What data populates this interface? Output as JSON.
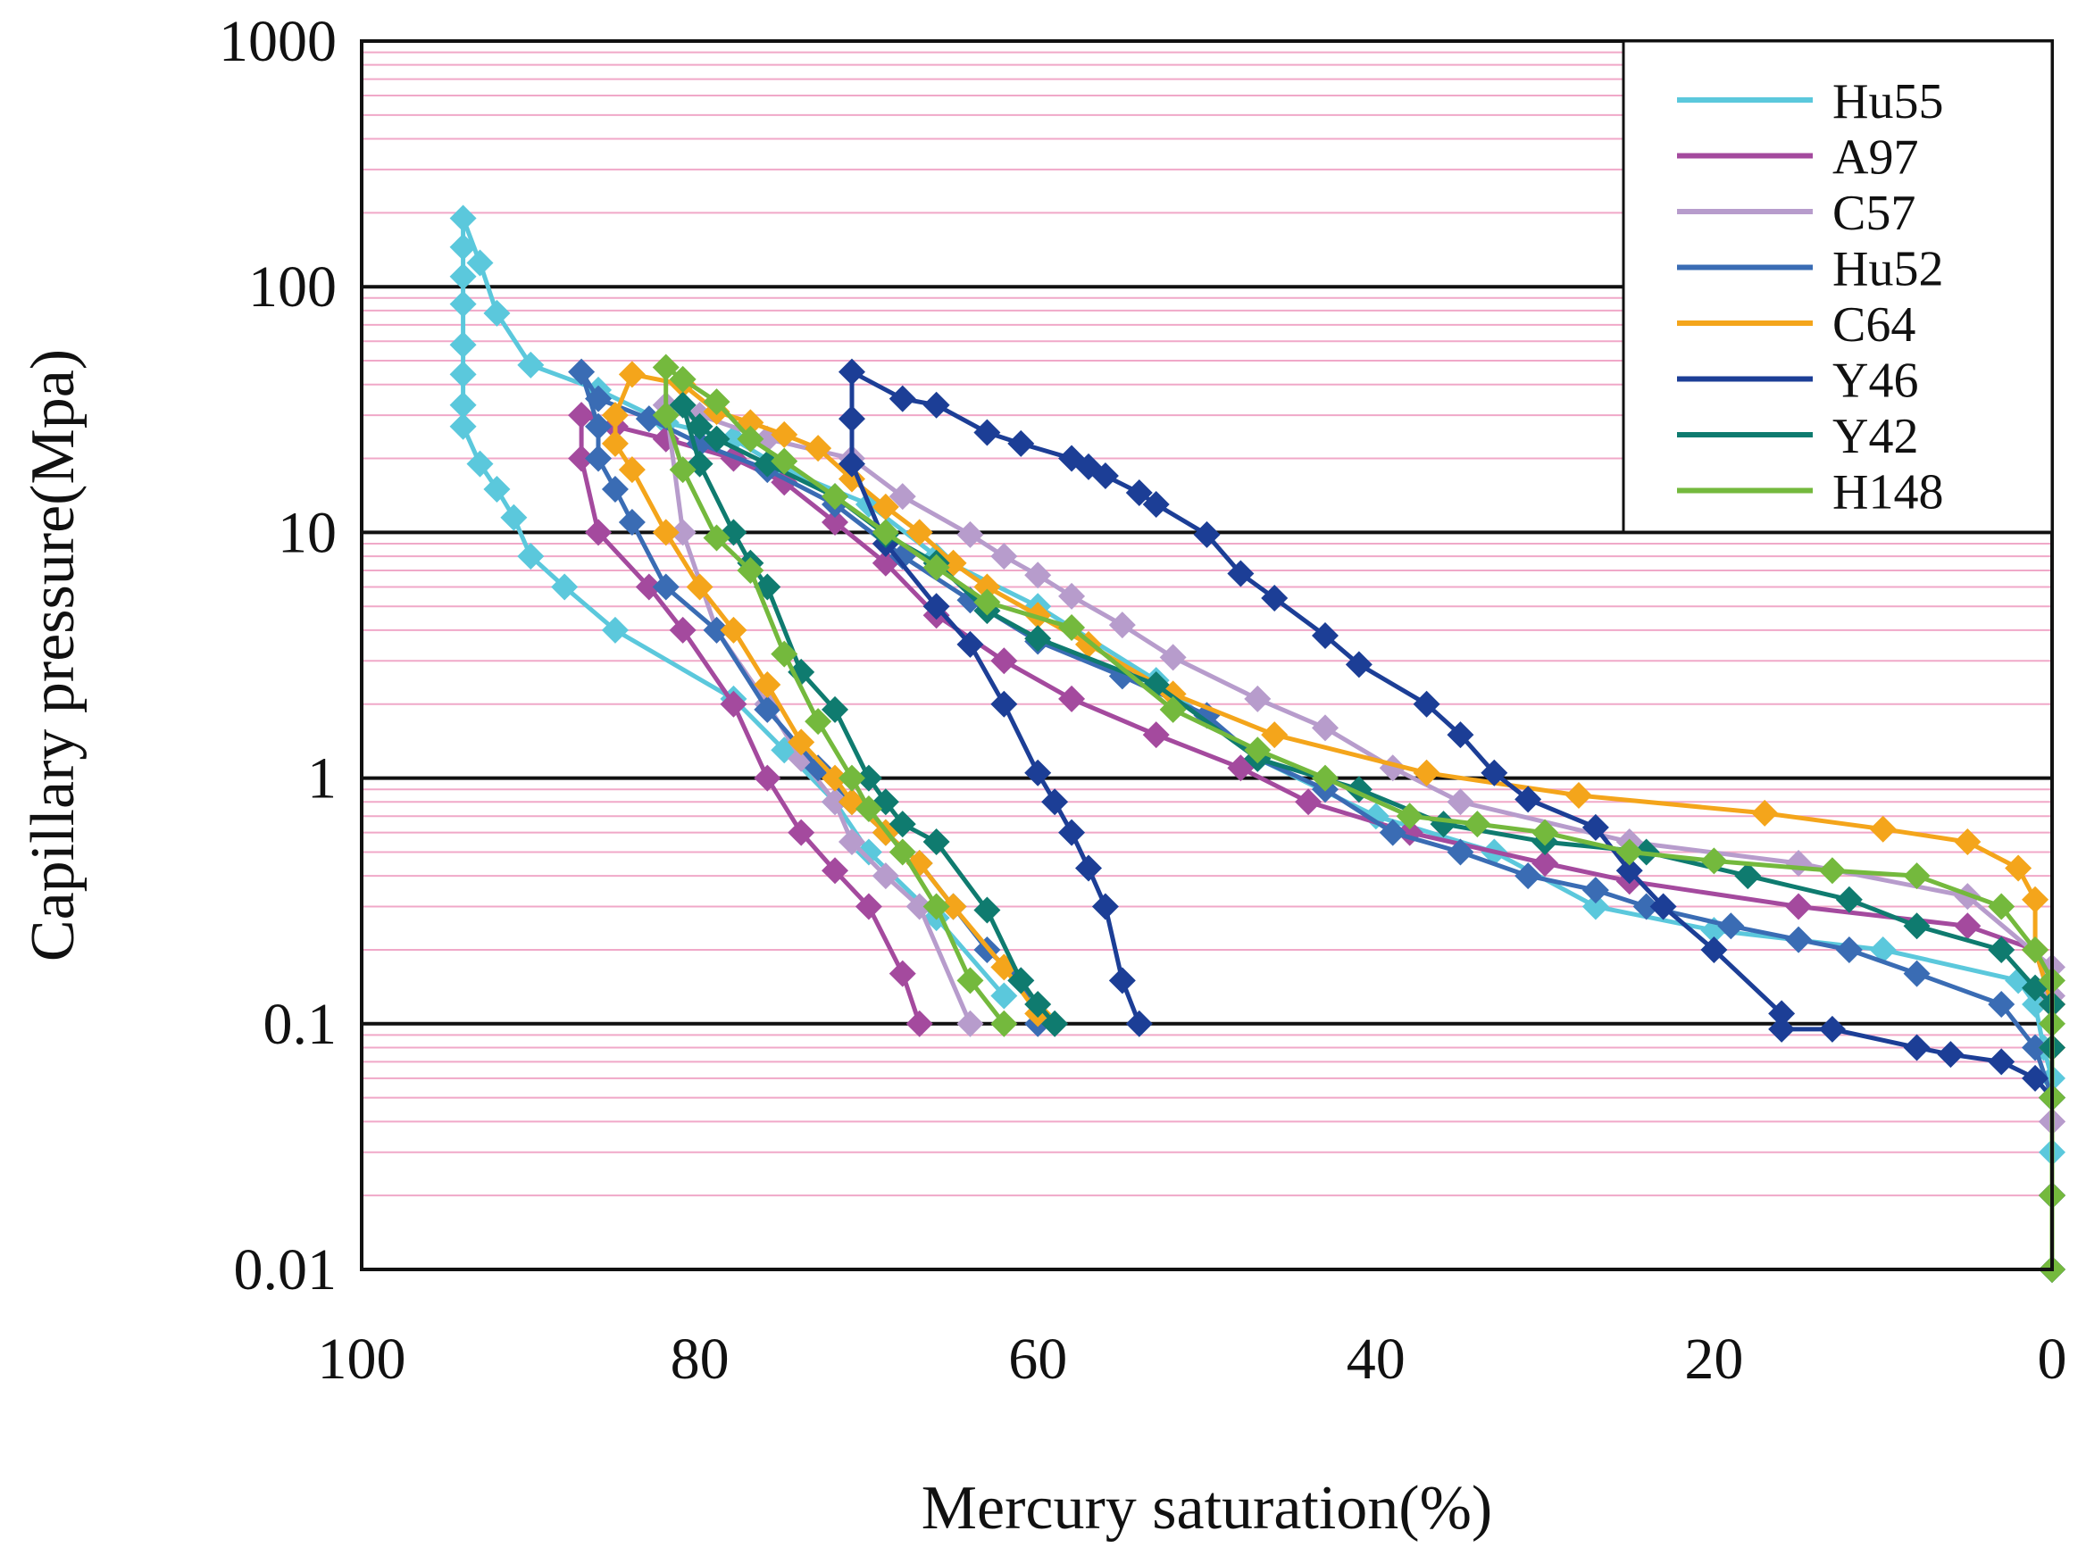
{
  "chart_data": {
    "type": "line",
    "title": "",
    "xlabel": "Mercury saturation(%)",
    "ylabel": "Capillary pressure(Mpa)",
    "x_scale": "linear",
    "x_reversed": true,
    "xlim": [
      0,
      100
    ],
    "y_scale": "log",
    "ylim": [
      0.01,
      1000
    ],
    "x_ticks": [
      "100",
      "80",
      "60",
      "40",
      "20",
      "0"
    ],
    "y_ticks": [
      "0.01",
      "0.1",
      "1",
      "10",
      "100",
      "1000"
    ],
    "grid": "major black, minor pink",
    "legend_position": "top-right",
    "marker": "diamond",
    "series": [
      {
        "name": "Hu55",
        "color": "#5bc8dc",
        "points": [
          [
            0,
            0.01
          ],
          [
            0,
            0.03
          ],
          [
            0,
            0.06
          ],
          [
            0.5,
            0.08
          ],
          [
            1,
            0.12
          ],
          [
            2,
            0.15
          ],
          [
            10,
            0.2
          ],
          [
            20,
            0.24
          ],
          [
            27,
            0.3
          ],
          [
            33,
            0.5
          ],
          [
            40,
            0.7
          ],
          [
            47,
            1.2
          ],
          [
            53,
            2.5
          ],
          [
            60,
            5
          ],
          [
            66,
            8
          ],
          [
            70,
            13
          ],
          [
            75,
            18
          ],
          [
            78,
            24
          ],
          [
            82,
            28
          ],
          [
            86,
            38
          ],
          [
            90,
            48
          ],
          [
            92,
            78
          ],
          [
            93,
            125
          ],
          [
            94,
            190
          ],
          [
            94,
            145
          ],
          [
            94,
            110
          ],
          [
            94,
            85
          ],
          [
            94,
            58
          ],
          [
            94,
            44
          ],
          [
            94,
            33
          ],
          [
            94,
            27
          ],
          [
            93,
            19
          ],
          [
            92,
            15
          ],
          [
            91,
            11.5
          ],
          [
            90,
            8
          ],
          [
            88,
            6
          ],
          [
            85,
            4
          ],
          [
            78,
            2.1
          ],
          [
            75,
            1.3
          ],
          [
            72,
            0.8
          ],
          [
            70,
            0.5
          ],
          [
            66,
            0.27
          ],
          [
            62,
            0.13
          ]
        ]
      },
      {
        "name": "A97",
        "color": "#a44a9e",
        "points": [
          [
            0,
            0.01
          ],
          [
            0,
            0.02
          ],
          [
            0,
            0.04
          ],
          [
            0,
            0.08
          ],
          [
            0,
            0.12
          ],
          [
            1,
            0.2
          ],
          [
            5,
            0.25
          ],
          [
            15,
            0.3
          ],
          [
            25,
            0.38
          ],
          [
            30,
            0.45
          ],
          [
            38,
            0.6
          ],
          [
            44,
            0.8
          ],
          [
            48,
            1.1
          ],
          [
            53,
            1.5
          ],
          [
            58,
            2.1
          ],
          [
            62,
            3
          ],
          [
            66,
            4.6
          ],
          [
            69,
            7.5
          ],
          [
            72,
            11
          ],
          [
            75,
            16
          ],
          [
            78,
            20
          ],
          [
            82,
            24
          ],
          [
            85,
            27
          ],
          [
            87,
            30
          ],
          [
            87,
            20
          ],
          [
            86,
            10
          ],
          [
            83,
            6
          ],
          [
            81,
            4
          ],
          [
            78,
            2
          ],
          [
            76,
            1
          ],
          [
            74,
            0.6
          ],
          [
            72,
            0.42
          ],
          [
            70,
            0.3
          ],
          [
            68,
            0.16
          ],
          [
            67,
            0.1
          ]
        ]
      },
      {
        "name": "C57",
        "color": "#b79ccc",
        "points": [
          [
            0,
            0.01
          ],
          [
            0,
            0.02
          ],
          [
            0,
            0.04
          ],
          [
            0,
            0.08
          ],
          [
            0,
            0.13
          ],
          [
            0,
            0.17
          ],
          [
            5,
            0.33
          ],
          [
            15,
            0.45
          ],
          [
            25,
            0.55
          ],
          [
            35,
            0.8
          ],
          [
            39,
            1.1
          ],
          [
            43,
            1.6
          ],
          [
            47,
            2.1
          ],
          [
            52,
            3.1
          ],
          [
            55,
            4.2
          ],
          [
            58,
            5.5
          ],
          [
            60,
            6.7
          ],
          [
            62,
            8
          ],
          [
            64,
            9.8
          ],
          [
            68,
            14
          ],
          [
            71,
            20
          ],
          [
            76,
            24
          ],
          [
            80,
            30
          ],
          [
            82,
            33
          ],
          [
            81,
            10
          ],
          [
            79,
            4
          ],
          [
            76,
            2
          ],
          [
            74,
            1.2
          ],
          [
            72,
            0.8
          ],
          [
            71,
            0.55
          ],
          [
            69,
            0.4
          ],
          [
            67,
            0.3
          ],
          [
            64,
            0.1
          ]
        ]
      },
      {
        "name": "Hu52",
        "color": "#3a6cb4",
        "points": [
          [
            0,
            0.01
          ],
          [
            0,
            0.02
          ],
          [
            0,
            0.05
          ],
          [
            1,
            0.08
          ],
          [
            3,
            0.12
          ],
          [
            8,
            0.16
          ],
          [
            12,
            0.2
          ],
          [
            15,
            0.22
          ],
          [
            19,
            0.25
          ],
          [
            24,
            0.3
          ],
          [
            27,
            0.35
          ],
          [
            31,
            0.4
          ],
          [
            35,
            0.5
          ],
          [
            39,
            0.6
          ],
          [
            43,
            0.9
          ],
          [
            47,
            1.2
          ],
          [
            50,
            1.8
          ],
          [
            55,
            2.6
          ],
          [
            60,
            3.6
          ],
          [
            64,
            5.3
          ],
          [
            68,
            8
          ],
          [
            72,
            13
          ],
          [
            76,
            18
          ],
          [
            80,
            23
          ],
          [
            83,
            29
          ],
          [
            86,
            35
          ],
          [
            87,
            45
          ],
          [
            86,
            27
          ],
          [
            86,
            20
          ],
          [
            85,
            15
          ],
          [
            84,
            11
          ],
          [
            82,
            6
          ],
          [
            79,
            4
          ],
          [
            76,
            1.9
          ],
          [
            73,
            1.1
          ],
          [
            71,
            0.8
          ],
          [
            69,
            0.6
          ],
          [
            67,
            0.45
          ],
          [
            65,
            0.3
          ],
          [
            63,
            0.2
          ],
          [
            61,
            0.15
          ],
          [
            60,
            0.1
          ]
        ]
      },
      {
        "name": "C64",
        "color": "#f4a51b",
        "points": [
          [
            0,
            0.01
          ],
          [
            0,
            0.02
          ],
          [
            0,
            0.05
          ],
          [
            0,
            0.08
          ],
          [
            0,
            0.12
          ],
          [
            1,
            0.2
          ],
          [
            1,
            0.32
          ],
          [
            2,
            0.43
          ],
          [
            5,
            0.55
          ],
          [
            10,
            0.62
          ],
          [
            17,
            0.72
          ],
          [
            28,
            0.85
          ],
          [
            37,
            1.05
          ],
          [
            46,
            1.5
          ],
          [
            52,
            2.2
          ],
          [
            57,
            3.5
          ],
          [
            60,
            4.6
          ],
          [
            63,
            6
          ],
          [
            65,
            7.5
          ],
          [
            67,
            10
          ],
          [
            69,
            12.7
          ],
          [
            71,
            16.5
          ],
          [
            73,
            22
          ],
          [
            75,
            25
          ],
          [
            77,
            28
          ],
          [
            79,
            31
          ],
          [
            81,
            40
          ],
          [
            84,
            44
          ],
          [
            85,
            30
          ],
          [
            85,
            23
          ],
          [
            84,
            18
          ],
          [
            82,
            10
          ],
          [
            80,
            6
          ],
          [
            78,
            4
          ],
          [
            76,
            2.4
          ],
          [
            74,
            1.4
          ],
          [
            72,
            1
          ],
          [
            71,
            0.8
          ],
          [
            69,
            0.6
          ],
          [
            67,
            0.45
          ],
          [
            65,
            0.3
          ],
          [
            62,
            0.17
          ],
          [
            60,
            0.11
          ]
        ]
      },
      {
        "name": "Y46",
        "color": "#1c3e96",
        "points": [
          [
            0,
            0.01
          ],
          [
            0,
            0.02
          ],
          [
            0,
            0.05
          ],
          [
            1,
            0.06
          ],
          [
            3,
            0.07
          ],
          [
            6,
            0.075
          ],
          [
            8,
            0.08
          ],
          [
            13,
            0.095
          ],
          [
            16,
            0.095
          ],
          [
            16,
            0.11
          ],
          [
            20,
            0.2
          ],
          [
            23,
            0.3
          ],
          [
            25,
            0.42
          ],
          [
            27,
            0.63
          ],
          [
            31,
            0.82
          ],
          [
            33,
            1.05
          ],
          [
            35,
            1.5
          ],
          [
            37,
            2
          ],
          [
            41,
            2.9
          ],
          [
            43,
            3.8
          ],
          [
            46,
            5.4
          ],
          [
            48,
            6.8
          ],
          [
            50,
            9.8
          ],
          [
            53,
            13
          ],
          [
            54,
            14.5
          ],
          [
            56,
            17
          ],
          [
            57,
            18.5
          ],
          [
            58,
            20
          ],
          [
            61,
            23
          ],
          [
            63,
            25.5
          ],
          [
            66,
            33
          ],
          [
            68,
            35
          ],
          [
            71,
            45
          ],
          [
            71,
            29
          ],
          [
            71,
            19
          ],
          [
            69,
            9
          ],
          [
            66,
            5
          ],
          [
            64,
            3.5
          ],
          [
            62,
            2
          ],
          [
            60,
            1.05
          ],
          [
            59,
            0.8
          ],
          [
            58,
            0.6
          ],
          [
            57,
            0.43
          ],
          [
            56,
            0.3
          ],
          [
            55,
            0.15
          ],
          [
            54,
            0.1
          ]
        ]
      },
      {
        "name": "Y42",
        "color": "#0f7b6f",
        "points": [
          [
            0,
            0.01
          ],
          [
            0,
            0.02
          ],
          [
            0,
            0.05
          ],
          [
            0,
            0.08
          ],
          [
            0,
            0.12
          ],
          [
            1,
            0.14
          ],
          [
            3,
            0.2
          ],
          [
            8,
            0.25
          ],
          [
            12,
            0.32
          ],
          [
            18,
            0.4
          ],
          [
            24,
            0.5
          ],
          [
            30,
            0.55
          ],
          [
            36,
            0.65
          ],
          [
            41,
            0.9
          ],
          [
            47,
            1.2
          ],
          [
            53,
            2.4
          ],
          [
            60,
            3.7
          ],
          [
            63,
            4.8
          ],
          [
            66,
            7.5
          ],
          [
            69,
            9.8
          ],
          [
            72,
            14
          ],
          [
            76,
            19
          ],
          [
            79,
            24
          ],
          [
            80,
            27
          ],
          [
            81,
            33
          ],
          [
            80,
            19
          ],
          [
            78,
            10
          ],
          [
            77,
            7.5
          ],
          [
            76,
            6
          ],
          [
            74,
            2.7
          ],
          [
            72,
            1.9
          ],
          [
            70,
            1
          ],
          [
            69,
            0.8
          ],
          [
            68,
            0.65
          ],
          [
            66,
            0.55
          ],
          [
            63,
            0.29
          ],
          [
            61,
            0.15
          ],
          [
            60,
            0.12
          ],
          [
            59,
            0.1
          ]
        ]
      },
      {
        "name": "H148",
        "color": "#74b93d",
        "points": [
          [
            0,
            0.01
          ],
          [
            0,
            0.02
          ],
          [
            0,
            0.05
          ],
          [
            0,
            0.1
          ],
          [
            0,
            0.15
          ],
          [
            1,
            0.2
          ],
          [
            3,
            0.3
          ],
          [
            8,
            0.4
          ],
          [
            13,
            0.42
          ],
          [
            20,
            0.46
          ],
          [
            25,
            0.5
          ],
          [
            30,
            0.6
          ],
          [
            34,
            0.65
          ],
          [
            38,
            0.7
          ],
          [
            43,
            1
          ],
          [
            47,
            1.3
          ],
          [
            52,
            1.9
          ],
          [
            58,
            4.1
          ],
          [
            63,
            5.2
          ],
          [
            66,
            7.2
          ],
          [
            69,
            10
          ],
          [
            72,
            14
          ],
          [
            75,
            19.5
          ],
          [
            77,
            24
          ],
          [
            79,
            34
          ],
          [
            81,
            42
          ],
          [
            82,
            47
          ],
          [
            82,
            30
          ],
          [
            81,
            18
          ],
          [
            79,
            9.5
          ],
          [
            77,
            7
          ],
          [
            75,
            3.2
          ],
          [
            73,
            1.7
          ],
          [
            71,
            1
          ],
          [
            70,
            0.75
          ],
          [
            68,
            0.5
          ],
          [
            66,
            0.3
          ],
          [
            64,
            0.15
          ],
          [
            62,
            0.1
          ]
        ]
      }
    ]
  }
}
